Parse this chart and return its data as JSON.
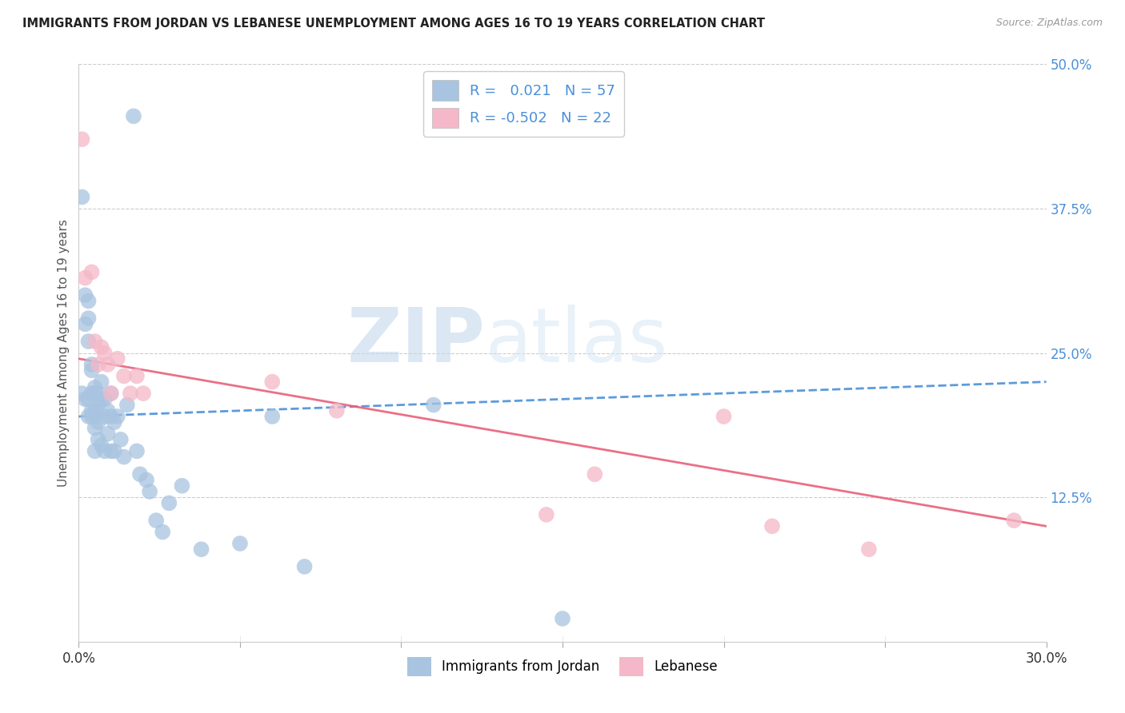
{
  "title": "IMMIGRANTS FROM JORDAN VS LEBANESE UNEMPLOYMENT AMONG AGES 16 TO 19 YEARS CORRELATION CHART",
  "source": "Source: ZipAtlas.com",
  "ylabel": "Unemployment Among Ages 16 to 19 years",
  "xlim": [
    0.0,
    0.3
  ],
  "ylim": [
    0.0,
    0.5
  ],
  "xticks": [
    0.0,
    0.05,
    0.1,
    0.15,
    0.2,
    0.25,
    0.3
  ],
  "xtick_labels": [
    "0.0%",
    "",
    "",
    "",
    "",
    "",
    "30.0%"
  ],
  "ytick_labels_right": [
    "50.0%",
    "37.5%",
    "25.0%",
    "12.5%",
    ""
  ],
  "yticks_right": [
    0.5,
    0.375,
    0.25,
    0.125,
    0.0
  ],
  "jordan_R": 0.021,
  "jordan_N": 57,
  "lebanese_R": -0.502,
  "lebanese_N": 22,
  "jordan_color": "#a8c4e0",
  "lebanese_color": "#f4b8c8",
  "jordan_line_color": "#4a90d9",
  "lebanese_line_color": "#e8607a",
  "watermark_zip": "ZIP",
  "watermark_atlas": "atlas",
  "jordan_x": [
    0.001,
    0.001,
    0.002,
    0.002,
    0.002,
    0.003,
    0.003,
    0.003,
    0.003,
    0.003,
    0.004,
    0.004,
    0.004,
    0.004,
    0.004,
    0.005,
    0.005,
    0.005,
    0.005,
    0.005,
    0.005,
    0.006,
    0.006,
    0.006,
    0.006,
    0.007,
    0.007,
    0.007,
    0.008,
    0.008,
    0.008,
    0.009,
    0.009,
    0.01,
    0.01,
    0.01,
    0.011,
    0.011,
    0.012,
    0.013,
    0.014,
    0.015,
    0.017,
    0.018,
    0.019,
    0.021,
    0.022,
    0.024,
    0.026,
    0.028,
    0.032,
    0.038,
    0.05,
    0.06,
    0.07,
    0.11,
    0.15
  ],
  "jordan_y": [
    0.385,
    0.215,
    0.3,
    0.275,
    0.21,
    0.295,
    0.28,
    0.26,
    0.21,
    0.195,
    0.24,
    0.235,
    0.215,
    0.2,
    0.195,
    0.22,
    0.215,
    0.2,
    0.195,
    0.185,
    0.165,
    0.215,
    0.205,
    0.19,
    0.175,
    0.225,
    0.21,
    0.17,
    0.21,
    0.195,
    0.165,
    0.2,
    0.18,
    0.215,
    0.195,
    0.165,
    0.19,
    0.165,
    0.195,
    0.175,
    0.16,
    0.205,
    0.455,
    0.165,
    0.145,
    0.14,
    0.13,
    0.105,
    0.095,
    0.12,
    0.135,
    0.08,
    0.085,
    0.195,
    0.065,
    0.205,
    0.02
  ],
  "lebanese_x": [
    0.001,
    0.002,
    0.004,
    0.005,
    0.006,
    0.007,
    0.008,
    0.009,
    0.01,
    0.012,
    0.014,
    0.016,
    0.018,
    0.02,
    0.06,
    0.08,
    0.145,
    0.16,
    0.2,
    0.215,
    0.245,
    0.29
  ],
  "lebanese_y": [
    0.435,
    0.315,
    0.32,
    0.26,
    0.24,
    0.255,
    0.25,
    0.24,
    0.215,
    0.245,
    0.23,
    0.215,
    0.23,
    0.215,
    0.225,
    0.2,
    0.11,
    0.145,
    0.195,
    0.1,
    0.08,
    0.105
  ],
  "jordan_line_x0": 0.0,
  "jordan_line_y0": 0.195,
  "jordan_line_x1": 0.3,
  "jordan_line_y1": 0.225,
  "lebanese_line_x0": 0.0,
  "lebanese_line_y0": 0.245,
  "lebanese_line_x1": 0.3,
  "lebanese_line_y1": 0.1
}
